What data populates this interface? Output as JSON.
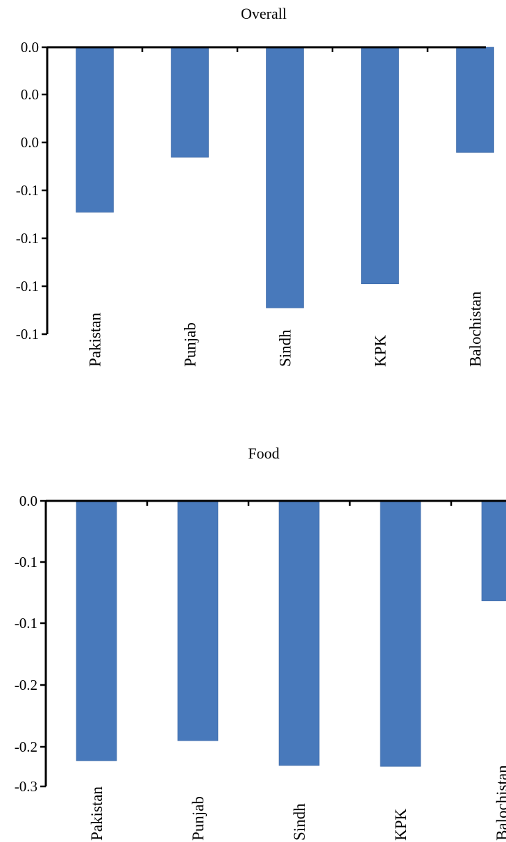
{
  "colors": {
    "bar": "#4879bb",
    "axis": "#000000",
    "background": "#ffffff"
  },
  "chart_data": [
    {
      "type": "bar",
      "title": "Overall",
      "xlabel": "",
      "ylabel": "",
      "categories": [
        "Pakistan",
        "Punjab",
        "Sindh",
        "KPK",
        "Balochistan"
      ],
      "values": [
        -0.069,
        -0.046,
        -0.109,
        -0.099,
        -0.044
      ],
      "ylim": [
        -0.12,
        0.0
      ],
      "ytick_labels": [
        "0.0",
        "0.0",
        "0.0",
        "-0.1",
        "-0.1",
        "-0.1",
        "-0.1"
      ],
      "grid": false,
      "legend": "none"
    },
    {
      "type": "bar",
      "title": "Food",
      "xlabel": "",
      "ylabel": "",
      "categories": [
        "Pakistan",
        "Punjab",
        "Sindh",
        "KPK",
        "Balochistan"
      ],
      "values": [
        -0.273,
        -0.252,
        -0.278,
        -0.279,
        -0.105
      ],
      "ylim": [
        -0.3,
        0.0
      ],
      "ytick_labels": [
        "0.0",
        "-0.1",
        "-0.1",
        "-0.2",
        "-0.2",
        "-0.3"
      ],
      "grid": false,
      "legend": "none"
    }
  ]
}
